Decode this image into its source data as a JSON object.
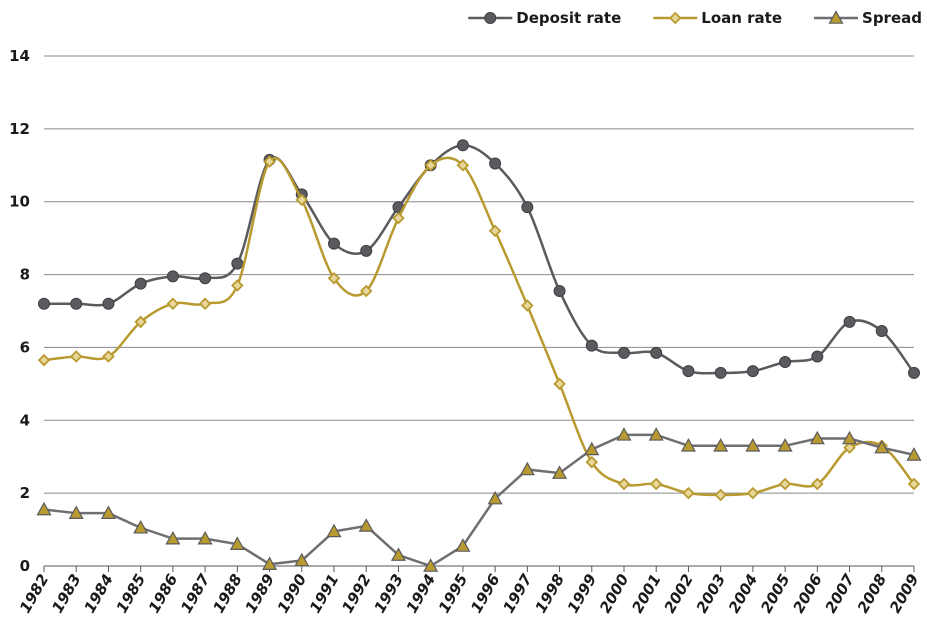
{
  "chart_data": {
    "type": "line",
    "title": "",
    "xlabel": "",
    "ylabel": "",
    "ylim": [
      0,
      14
    ],
    "yticks": [
      "0",
      "2",
      "4",
      "6",
      "8",
      "10",
      "12",
      "14"
    ],
    "grid": "horizontal",
    "legend_position": "top-right",
    "categories": [
      "1982",
      "1983",
      "1984",
      "1985",
      "1986",
      "1987",
      "1988",
      "1989",
      "1990",
      "1991",
      "1992",
      "1993",
      "1994",
      "1995",
      "1996",
      "1997",
      "1998",
      "1999",
      "2000",
      "2001",
      "2002",
      "2003",
      "2004",
      "2005",
      "2006",
      "2007",
      "2008",
      "2009"
    ],
    "series": [
      {
        "name": "Deposit rate",
        "color": "#5a5a5f",
        "marker": "circle",
        "values": [
          7.2,
          7.2,
          7.2,
          7.75,
          7.95,
          7.9,
          8.3,
          11.15,
          10.2,
          8.85,
          8.65,
          9.85,
          11.0,
          11.55,
          11.05,
          9.85,
          7.55,
          6.05,
          5.85,
          5.85,
          5.35,
          5.3,
          5.35,
          5.6,
          5.75,
          6.7,
          6.45,
          5.3
        ]
      },
      {
        "name": "Loan rate",
        "color": "#b89a30",
        "marker": "diamond",
        "values": [
          5.65,
          5.75,
          5.75,
          6.7,
          7.2,
          7.2,
          7.7,
          11.1,
          10.05,
          7.9,
          7.55,
          9.55,
          11.0,
          11.0,
          9.2,
          7.15,
          5.0,
          2.85,
          2.25,
          2.25,
          2.0,
          1.95,
          2.0,
          2.25,
          2.25,
          3.25,
          3.3,
          2.25
        ]
      },
      {
        "name": "Spread",
        "color": "#6e6e73",
        "marker": "triangle",
        "marker_fill": "#b89a30",
        "values": [
          1.55,
          1.45,
          1.45,
          1.05,
          0.75,
          0.75,
          0.6,
          0.05,
          0.15,
          0.95,
          1.1,
          0.3,
          0.0,
          0.55,
          1.85,
          2.65,
          2.55,
          3.2,
          3.6,
          3.6,
          3.3,
          3.3,
          3.3,
          3.3,
          3.5,
          3.5,
          3.25,
          3.05
        ]
      }
    ]
  }
}
